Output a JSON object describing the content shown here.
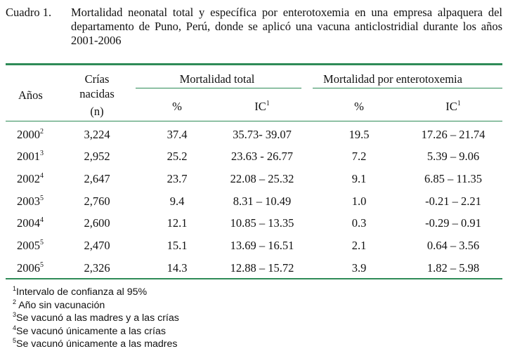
{
  "caption": {
    "label": "Cuadro 1.",
    "text": "Mortalidad neonatal total y específica por enterotoxemia en una empresa alpaquera del departamento de Puno, Perú, donde se aplicó una vacuna anticlostridial durante los años 2001-2006"
  },
  "headers": {
    "years": "Años",
    "births_line1": "Crías",
    "births_line2": "nacidas",
    "births_line3": "(n)",
    "total_group": "Mortalidad total",
    "entero_group": "Mortalidad por enterotoxemia",
    "pct": "%",
    "ci": "IC",
    "ci_mark": "1"
  },
  "rows": [
    {
      "year": "2000",
      "mark": "2",
      "births": "3,224",
      "total_pct": "37.4",
      "total_ci": "35.73- 39.07",
      "ent_pct": "19.5",
      "ent_ci": "17.26 – 21.74"
    },
    {
      "year": "2001",
      "mark": "3",
      "births": "2,952",
      "total_pct": "25.2",
      "total_ci": "23.63 - 26.77",
      "ent_pct": "7.2",
      "ent_ci": "5.39 – 9.06"
    },
    {
      "year": "2002",
      "mark": "4",
      "births": "2,647",
      "total_pct": "23.7",
      "total_ci": "22.08 – 25.32",
      "ent_pct": "9.1",
      "ent_ci": "6.85 – 11.35"
    },
    {
      "year": "2003",
      "mark": "5",
      "births": "2,760",
      "total_pct": "9.4",
      "total_ci": "8.31 – 10.49",
      "ent_pct": "1.0",
      "ent_ci": "-0.21 – 2.21"
    },
    {
      "year": "2004",
      "mark": "4",
      "births": "2,600",
      "total_pct": "12.1",
      "total_ci": "10.85 – 13.35",
      "ent_pct": "0.3",
      "ent_ci": "-0.29 – 0.91"
    },
    {
      "year": "2005",
      "mark": "5",
      "births": "2,470",
      "total_pct": "15.1",
      "total_ci": "13.69 – 16.51",
      "ent_pct": "2.1",
      "ent_ci": "0.64 – 3.56"
    },
    {
      "year": "2006",
      "mark": "5",
      "births": "2,326",
      "total_pct": "14.3",
      "total_ci": "12.88 – 15.72",
      "ent_pct": "3.9",
      "ent_ci": "1.82 – 5.98"
    }
  ],
  "footnotes": [
    {
      "mark": "1",
      "text": "Intervalo de confianza al 95%"
    },
    {
      "mark": "2",
      "text": "Año sin vacunación"
    },
    {
      "mark": "3",
      "text": "Se vacunó a las madres y a las crías"
    },
    {
      "mark": "4",
      "text": "Se vacunó únicamente a las crías"
    },
    {
      "mark": "5",
      "text": "Se vacunó únicamente a las madres"
    }
  ],
  "colors": {
    "rule": "#2e8b57",
    "text": "#111111"
  }
}
